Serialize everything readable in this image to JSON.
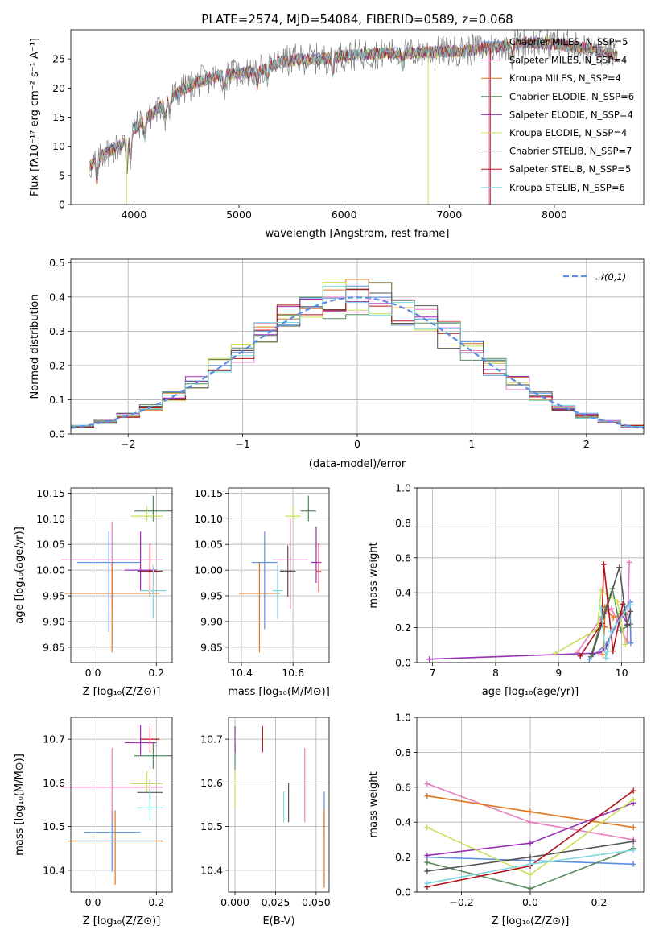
{
  "colors": {
    "Chabrier MILES": "#5a8fe0",
    "Salpeter MILES": "#e87fc0",
    "Kroupa MILES": "#e0751c",
    "Chabrier ELODIE": "#5a8a5e",
    "Salpeter ELODIE": "#9a2fb5",
    "Kroupa ELODIE": "#c8e05a",
    "Chabrier STELIB": "#555555",
    "Salpeter STELIB": "#b0141b",
    "Kroupa STELIB": "#7fd8e0",
    "gauss": "#5a8fe0"
  },
  "spectrum_panel": {
    "title": "PLATE=2574, MJD=54084, FIBERID=0589, z=0.068",
    "xlabel": "wavelength [Angstrom, rest frame]",
    "ylabel": "Flux [fλ10⁻¹⁷ erg cm⁻² s⁻¹ A⁻¹]",
    "xticks": [
      "4000",
      "5000",
      "6000",
      "7000",
      "8000"
    ],
    "yticks": [
      "0",
      "5",
      "10",
      "15",
      "20",
      "25"
    ],
    "legend": [
      "Chabrier MILES, N_SSP=5",
      "Salpeter MILES, N_SSP=4",
      "Kroupa MILES, N_SSP=4",
      "Chabrier ELODIE, N_SSP=6",
      "Salpeter ELODIE, N_SSP=4",
      "Kroupa ELODIE, N_SSP=4",
      "Chabrier STELIB, N_SSP=7",
      "Salpeter STELIB, N_SSP=5",
      "Kroupa STELIB, N_SSP=6"
    ]
  },
  "residual_panel": {
    "xlabel": "(data-model)/error",
    "ylabel": "Normed distribution",
    "xticks": [
      "−2",
      "−1",
      "0",
      "1",
      "2"
    ],
    "yticks": [
      "0.0",
      "0.1",
      "0.2",
      "0.3",
      "0.4",
      "0.5"
    ],
    "legend": "𝒩(0,1)"
  },
  "small_panels": {
    "age_vs_Z": {
      "ylabel": "age  [log₁₀(age/yr)]",
      "xlabel": "Z [log₁₀(Z/Z⊙)]",
      "xticks": [
        "0.0",
        "0.2"
      ],
      "yticks": [
        "9.85",
        "9.90",
        "9.95",
        "10.00",
        "10.05",
        "10.10",
        "10.15"
      ]
    },
    "age_vs_mass": {
      "xlabel": "mass [log₁₀(M/M⊙)]",
      "xticks": [
        "10.4",
        "10.6"
      ],
      "yticks": [
        "9.85",
        "9.90",
        "9.95",
        "10.00",
        "10.05",
        "10.10",
        "10.15"
      ]
    },
    "mass_vs_Z": {
      "ylabel": "mass [log₁₀(M/M⊙)]",
      "xlabel": "Z [log₁₀(Z/Z⊙)]",
      "xticks": [
        "0.0",
        "0.2"
      ],
      "yticks": [
        "10.4",
        "10.5",
        "10.6",
        "10.7"
      ]
    },
    "mass_vs_ebv": {
      "xlabel": "E(B-V)",
      "xticks": [
        "0.000",
        "0.025",
        "0.050"
      ],
      "yticks": [
        "10.4",
        "10.5",
        "10.6",
        "10.7"
      ]
    },
    "weight_vs_age": {
      "ylabel": "mass weight",
      "xlabel": "age  [log₁₀(age/yr)]",
      "xticks": [
        "7",
        "8",
        "9",
        "10"
      ],
      "yticks": [
        "0.0",
        "0.2",
        "0.4",
        "0.6",
        "0.8",
        "1.0"
      ]
    },
    "weight_vs_Z": {
      "ylabel": "mass weight",
      "xlabel": "Z [log₁₀(Z/Z⊙)]",
      "xticks": [
        "−0.2",
        "0.0",
        "0.2"
      ],
      "yticks": [
        "0.0",
        "0.2",
        "0.4",
        "0.6",
        "0.8",
        "1.0"
      ]
    }
  },
  "chart_data": [
    {
      "type": "line",
      "title": "PLATE=2574, MJD=54084, FIBERID=0589, z=0.068",
      "xlabel": "wavelength [Angstrom, rest frame]",
      "ylabel": "Flux [fλ10⁻¹⁷ erg cm⁻² s⁻¹ A⁻¹]",
      "xlim": [
        3400,
        8850
      ],
      "ylim": [
        0,
        30
      ],
      "continuum": {
        "x": [
          3580,
          3700,
          3900,
          4000,
          4200,
          4400,
          4600,
          4800,
          5000,
          5200,
          5400,
          5600,
          5800,
          6000,
          6200,
          6400,
          6600,
          6800,
          7000,
          7200,
          7400,
          7600,
          7800,
          8000,
          8200,
          8400,
          8600
        ],
        "y": [
          6.5,
          8.5,
          10.5,
          13,
          16,
          19,
          21,
          22,
          22.5,
          23,
          24.5,
          25,
          25,
          25.5,
          25.8,
          26,
          26,
          26.2,
          26.3,
          26.5,
          27,
          27.5,
          27.8,
          27.6,
          27,
          26.5,
          25.5
        ]
      },
      "series": [
        {
          "name": "Chabrier MILES, N_SSP=5"
        },
        {
          "name": "Salpeter MILES, N_SSP=4"
        },
        {
          "name": "Kroupa MILES, N_SSP=4"
        },
        {
          "name": "Chabrier ELODIE, N_SSP=6"
        },
        {
          "name": "Salpeter ELODIE, N_SSP=4"
        },
        {
          "name": "Kroupa ELODIE, N_SSP=4"
        },
        {
          "name": "Chabrier STELIB, N_SSP=7"
        },
        {
          "name": "Salpeter STELIB, N_SSP=5"
        },
        {
          "name": "Kroupa STELIB, N_SSP=6"
        }
      ],
      "legend_loc": "upper right"
    },
    {
      "type": "line",
      "subtype": "step-histogram",
      "xlabel": "(data-model)/error",
      "ylabel": "Normed distribution",
      "xlim": [
        -2.5,
        2.5
      ],
      "ylim": [
        0,
        0.51
      ],
      "bin_edges": [
        -2.5,
        -2.3,
        -2.1,
        -1.9,
        -1.7,
        -1.5,
        -1.3,
        -1.1,
        -0.9,
        -0.7,
        -0.5,
        -0.3,
        -0.1,
        0.1,
        0.3,
        0.5,
        0.7,
        0.9,
        1.1,
        1.3,
        1.5,
        1.7,
        1.9,
        2.1,
        2.3,
        2.5
      ],
      "gauss_curve": {
        "name": "𝒩(0,1)",
        "mu": 0,
        "sigma": 1
      },
      "legend_loc": "upper right"
    },
    {
      "type": "scatter",
      "subtype": "errorbar",
      "xlabel": "Z [log₁₀(Z/Z⊙)]",
      "ylabel": "age  [log₁₀(age/yr)]",
      "xlim": [
        -0.07,
        0.25
      ],
      "ylim": [
        9.82,
        10.16
      ],
      "points": [
        {
          "x": 0.05,
          "y": 10.015,
          "xerr": 0.1,
          "yerr": [
            0.135,
            0.06
          ]
        },
        {
          "x": 0.06,
          "y": 10.02,
          "xerr": 0.16,
          "yerr": [
            0.095,
            0.075
          ]
        },
        {
          "x": 0.06,
          "y": 9.955,
          "xerr": 0.15,
          "yerr": [
            0.115,
            0.06
          ]
        },
        {
          "x": 0.19,
          "y": 10.115,
          "xerr": 0.06,
          "yerr": [
            0.02,
            0.03
          ]
        },
        {
          "x": 0.15,
          "y": 10.0,
          "xerr": 0.05,
          "yerr": [
            0.04,
            0.075
          ]
        },
        {
          "x": 0.17,
          "y": 10.105,
          "xerr": 0.05,
          "yerr": [
            0.01,
            0.02
          ]
        },
        {
          "x": 0.18,
          "y": 9.998,
          "xerr": 0.04,
          "yerr": [
            0.05,
            0.05
          ]
        },
        {
          "x": 0.18,
          "y": 9.997,
          "xerr": 0.03,
          "yerr": [
            0.04,
            0.055
          ]
        },
        {
          "x": 0.19,
          "y": 9.96,
          "xerr": 0.04,
          "yerr": [
            0.055,
            0.05
          ]
        }
      ]
    },
    {
      "type": "scatter",
      "subtype": "errorbar",
      "xlabel": "mass [log₁₀(M/M⊙)]",
      "xlim": [
        10.35,
        10.74
      ],
      "ylim": [
        9.82,
        10.16
      ],
      "points": [
        {
          "x": 10.49,
          "y": 10.015,
          "xerr": 0.05,
          "yerr": [
            0.13,
            0.06
          ]
        },
        {
          "x": 10.59,
          "y": 10.02,
          "xerr": 0.07,
          "yerr": [
            0.095,
            0.08
          ]
        },
        {
          "x": 10.47,
          "y": 9.955,
          "xerr": 0.08,
          "yerr": [
            0.115,
            0.06
          ]
        },
        {
          "x": 10.66,
          "y": 10.115,
          "xerr": 0.03,
          "yerr": [
            0.02,
            0.03
          ]
        },
        {
          "x": 10.69,
          "y": 10.015,
          "xerr": 0.02,
          "yerr": [
            0.04,
            0.07
          ]
        },
        {
          "x": 10.6,
          "y": 10.105,
          "xerr": 0.03,
          "yerr": [
            0.01,
            0.02
          ]
        },
        {
          "x": 10.58,
          "y": 9.998,
          "xerr": 0.03,
          "yerr": [
            0.05,
            0.05
          ]
        },
        {
          "x": 10.7,
          "y": 9.997,
          "xerr": 0.01,
          "yerr": [
            0.04,
            0.055
          ]
        },
        {
          "x": 10.54,
          "y": 9.96,
          "xerr": 0.02,
          "yerr": [
            0.055,
            0.05
          ]
        }
      ]
    },
    {
      "type": "line",
      "xlabel": "age  [log₁₀(age/yr)]",
      "ylabel": "mass weight",
      "xlim": [
        6.75,
        10.35
      ],
      "ylim": [
        0,
        1
      ]
    },
    {
      "type": "scatter",
      "subtype": "errorbar",
      "xlabel": "Z [log₁₀(Z/Z⊙)]",
      "ylabel": "mass [log₁₀(M/M⊙)]",
      "xlim": [
        -0.07,
        0.25
      ],
      "ylim": [
        10.35,
        10.75
      ],
      "points": [
        {
          "x": 0.06,
          "y": 10.487,
          "xerr": 0.09,
          "yerr": [
            0.09,
            0.05
          ]
        },
        {
          "x": 0.06,
          "y": 10.59,
          "xerr": 0.16,
          "yerr": [
            0.08,
            0.09
          ]
        },
        {
          "x": 0.07,
          "y": 10.467,
          "xerr": 0.15,
          "yerr": [
            0.1,
            0.07
          ]
        },
        {
          "x": 0.19,
          "y": 10.662,
          "xerr": 0.06,
          "yerr": [
            0.03,
            0.03
          ]
        },
        {
          "x": 0.15,
          "y": 10.692,
          "xerr": 0.05,
          "yerr": [
            0.03,
            0.04
          ]
        },
        {
          "x": 0.17,
          "y": 10.598,
          "xerr": 0.05,
          "yerr": [
            0.02,
            0.03
          ]
        },
        {
          "x": 0.18,
          "y": 10.578,
          "xerr": 0.04,
          "yerr": [
            0.04,
            0.03
          ]
        },
        {
          "x": 0.18,
          "y": 10.7,
          "xerr": 0.03,
          "yerr": [
            0.03,
            0.03
          ]
        },
        {
          "x": 0.18,
          "y": 10.543,
          "xerr": 0.04,
          "yerr": [
            0.03,
            0.04
          ]
        }
      ]
    },
    {
      "type": "scatter",
      "subtype": "errorbar",
      "xlabel": "E(B-V)",
      "xlim": [
        -0.004,
        0.058
      ],
      "ylim": [
        10.35,
        10.75
      ],
      "points": [
        {
          "x": 0.055,
          "y": 10.52,
          "yerr": [
            0.04,
            0.06
          ]
        },
        {
          "x": 0.043,
          "y": 10.59,
          "yerr": [
            0.08,
            0.09
          ]
        },
        {
          "x": 0.055,
          "y": 10.45,
          "yerr": [
            0.09,
            0.09
          ]
        },
        {
          "x": 0.0,
          "y": 10.66,
          "yerr": [
            0.03,
            0.03
          ]
        },
        {
          "x": 0.0,
          "y": 10.7,
          "yerr": [
            0.03,
            0.03
          ]
        },
        {
          "x": 0.0,
          "y": 10.59,
          "yerr": [
            0.05,
            0.04
          ]
        },
        {
          "x": 0.033,
          "y": 10.55,
          "yerr": [
            0.04,
            0.05
          ]
        },
        {
          "x": 0.017,
          "y": 10.7,
          "yerr": [
            0.03,
            0.03
          ]
        },
        {
          "x": 0.03,
          "y": 10.54,
          "yerr": [
            0.03,
            0.04
          ]
        }
      ]
    },
    {
      "type": "line",
      "xlabel": "Z [log₁₀(Z/Z⊙)]",
      "ylabel": "mass weight",
      "xlim": [
        -0.33,
        0.33
      ],
      "ylim": [
        0,
        1
      ]
    }
  ]
}
